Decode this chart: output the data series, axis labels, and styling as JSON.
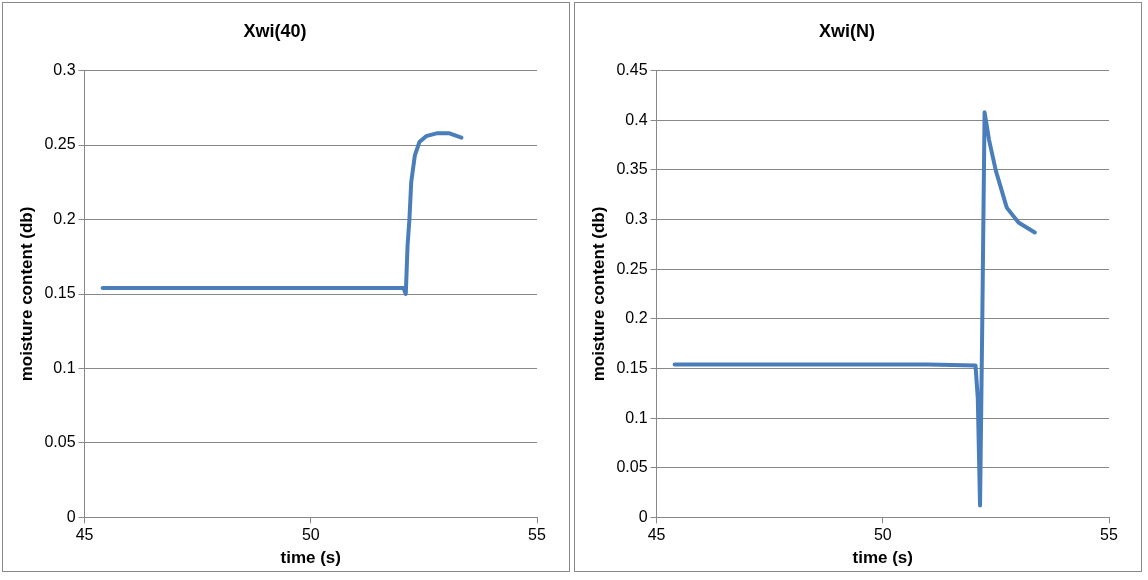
{
  "chart_data": [
    {
      "type": "line",
      "title": "Xwi(40)",
      "xlabel": "time (s)",
      "ylabel": "moisture content (db)",
      "xlim": [
        45,
        55
      ],
      "xticks": [
        45,
        50,
        55
      ],
      "ylim": [
        0,
        0.3
      ],
      "yticks": [
        0,
        0.05,
        0.1,
        0.15,
        0.2,
        0.25,
        0.3
      ],
      "grid": "y",
      "marker": "none",
      "line_style": "solid",
      "legend": false,
      "series": [
        {
          "color": "#4a7ebb",
          "x": [
            45.4,
            47,
            49,
            51,
            52.05,
            52.1,
            52.14,
            52.18,
            52.22,
            52.3,
            52.4,
            52.55,
            52.8,
            53.05,
            53.33
          ],
          "values": [
            0.154,
            0.154,
            0.154,
            0.154,
            0.154,
            0.15,
            0.183,
            0.2,
            0.225,
            0.243,
            0.252,
            0.256,
            0.258,
            0.258,
            0.255
          ]
        }
      ]
    },
    {
      "type": "line",
      "title": "Xwi(N)",
      "xlabel": "time (s)",
      "ylabel": "moisture content (db)",
      "xlim": [
        45,
        55
      ],
      "xticks": [
        45,
        50,
        55
      ],
      "ylim": [
        0,
        0.45
      ],
      "yticks": [
        0,
        0.05,
        0.1,
        0.15,
        0.2,
        0.25,
        0.3,
        0.35,
        0.4,
        0.45
      ],
      "grid": "y",
      "marker": "none",
      "line_style": "solid",
      "legend": false,
      "series": [
        {
          "color": "#4a7ebb",
          "x": [
            45.4,
            47,
            49,
            51,
            52.05,
            52.1,
            52.15,
            52.2,
            52.25,
            52.35,
            52.5,
            52.74,
            53.0,
            53.36
          ],
          "values": [
            0.154,
            0.154,
            0.154,
            0.154,
            0.153,
            0.12,
            0.012,
            0.2,
            0.408,
            0.38,
            0.349,
            0.312,
            0.297,
            0.287
          ]
        }
      ]
    }
  ]
}
